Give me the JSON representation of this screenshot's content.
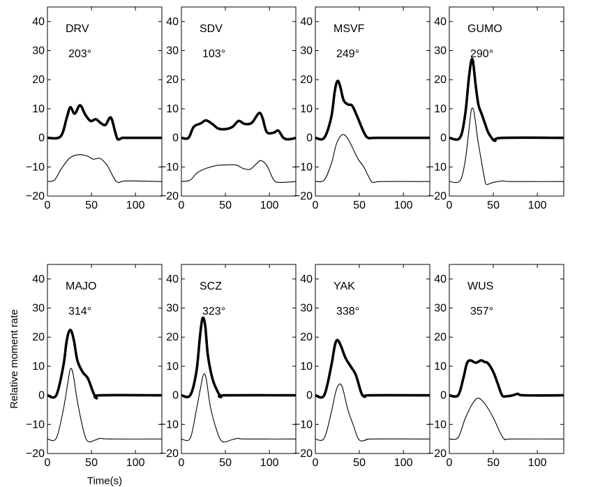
{
  "chart_data": {
    "type": "line",
    "xlabel": "Time(s)",
    "ylabel": "Relative moment rate",
    "xlim": [
      0,
      130
    ],
    "ylim": [
      -20,
      45
    ],
    "xticks": [
      0,
      50,
      100
    ],
    "yticks": [
      -20,
      -10,
      0,
      10,
      20,
      30,
      40
    ],
    "line_color": "#000000",
    "panels": [
      {
        "station": "DRV",
        "azimuth": "203°",
        "thick": [
          [
            0,
            0
          ],
          [
            15,
            0.5
          ],
          [
            22,
            7
          ],
          [
            26,
            10.5
          ],
          [
            31,
            8.3
          ],
          [
            37,
            11.2
          ],
          [
            43,
            8
          ],
          [
            49,
            5.8
          ],
          [
            55,
            6.4
          ],
          [
            61,
            5
          ],
          [
            66,
            4.5
          ],
          [
            72,
            7
          ],
          [
            77,
            2
          ],
          [
            80,
            -0.5
          ],
          [
            85,
            0
          ],
          [
            92,
            0
          ],
          [
            130,
            0
          ]
        ],
        "thin": [
          [
            0,
            -15
          ],
          [
            8,
            -14.5
          ],
          [
            15,
            -11
          ],
          [
            25,
            -7
          ],
          [
            35,
            -5.8
          ],
          [
            45,
            -6.2
          ],
          [
            52,
            -7.3
          ],
          [
            60,
            -7.1
          ],
          [
            68,
            -9.5
          ],
          [
            75,
            -13.5
          ],
          [
            80,
            -15.3
          ],
          [
            90,
            -14.8
          ],
          [
            130,
            -15
          ]
        ]
      },
      {
        "station": "SDV",
        "azimuth": "103°",
        "thick": [
          [
            0,
            0
          ],
          [
            8,
            0
          ],
          [
            14,
            3.8
          ],
          [
            22,
            5
          ],
          [
            28,
            6
          ],
          [
            35,
            4.8
          ],
          [
            42,
            3.2
          ],
          [
            50,
            3
          ],
          [
            58,
            3.8
          ],
          [
            65,
            5.8
          ],
          [
            72,
            4.8
          ],
          [
            80,
            5.2
          ],
          [
            88,
            8.5
          ],
          [
            92,
            7
          ],
          [
            97,
            2
          ],
          [
            105,
            1.8
          ],
          [
            110,
            2.5
          ],
          [
            116,
            0
          ],
          [
            122,
            -0.5
          ],
          [
            130,
            0
          ]
        ],
        "thin": [
          [
            0,
            -15
          ],
          [
            10,
            -14.5
          ],
          [
            18,
            -12
          ],
          [
            28,
            -10.5
          ],
          [
            40,
            -9.5
          ],
          [
            50,
            -9.3
          ],
          [
            62,
            -9.3
          ],
          [
            70,
            -10.5
          ],
          [
            78,
            -10.8
          ],
          [
            85,
            -9
          ],
          [
            90,
            -7.8
          ],
          [
            97,
            -9.5
          ],
          [
            105,
            -14.5
          ],
          [
            112,
            -15.3
          ],
          [
            130,
            -15
          ]
        ]
      },
      {
        "station": "MSVF",
        "azimuth": "249°",
        "thick": [
          [
            0,
            0
          ],
          [
            10,
            0
          ],
          [
            18,
            7
          ],
          [
            22,
            16
          ],
          [
            25,
            19.5
          ],
          [
            28,
            18
          ],
          [
            32,
            13
          ],
          [
            37,
            11.5
          ],
          [
            42,
            11
          ],
          [
            48,
            7
          ],
          [
            55,
            2
          ],
          [
            60,
            0
          ],
          [
            70,
            0
          ],
          [
            130,
            0
          ]
        ],
        "thin": [
          [
            0,
            -15
          ],
          [
            10,
            -14.5
          ],
          [
            18,
            -9
          ],
          [
            24,
            -2
          ],
          [
            30,
            1
          ],
          [
            35,
            0.5
          ],
          [
            40,
            -2
          ],
          [
            48,
            -7
          ],
          [
            55,
            -10
          ],
          [
            60,
            -13
          ],
          [
            65,
            -15.3
          ],
          [
            75,
            -15
          ],
          [
            130,
            -15
          ]
        ]
      },
      {
        "station": "GUMO",
        "azimuth": "290°",
        "thick": [
          [
            0,
            0
          ],
          [
            12,
            0
          ],
          [
            18,
            8
          ],
          [
            22,
            20
          ],
          [
            25,
            26.5
          ],
          [
            27,
            26
          ],
          [
            30,
            18
          ],
          [
            33,
            11.5
          ],
          [
            37,
            8
          ],
          [
            41,
            4.5
          ],
          [
            44,
            2
          ],
          [
            48,
            0
          ],
          [
            52,
            -1
          ],
          [
            60,
            0
          ],
          [
            130,
            0
          ]
        ],
        "thin": [
          [
            0,
            -15
          ],
          [
            12,
            -14.8
          ],
          [
            18,
            -8
          ],
          [
            22,
            2
          ],
          [
            25,
            9.5
          ],
          [
            28,
            9
          ],
          [
            32,
            0
          ],
          [
            37,
            -9
          ],
          [
            40,
            -14
          ],
          [
            42,
            -16
          ],
          [
            48,
            -15.5
          ],
          [
            55,
            -15
          ],
          [
            62,
            -14.8
          ],
          [
            70,
            -15
          ],
          [
            130,
            -15
          ]
        ]
      },
      {
        "station": "MAJO",
        "azimuth": "314°",
        "thick": [
          [
            0,
            0
          ],
          [
            10,
            0
          ],
          [
            18,
            10
          ],
          [
            22,
            19
          ],
          [
            26,
            22.5
          ],
          [
            30,
            19
          ],
          [
            34,
            12
          ],
          [
            40,
            8
          ],
          [
            46,
            5.8
          ],
          [
            52,
            1
          ],
          [
            56,
            -1
          ],
          [
            60,
            0
          ],
          [
            130,
            0
          ]
        ],
        "thin": [
          [
            0,
            -15
          ],
          [
            10,
            -14.8
          ],
          [
            18,
            -5
          ],
          [
            23,
            4
          ],
          [
            26,
            9
          ],
          [
            29,
            7.5
          ],
          [
            34,
            -2
          ],
          [
            40,
            -11
          ],
          [
            44,
            -15
          ],
          [
            48,
            -16
          ],
          [
            55,
            -15.3
          ],
          [
            60,
            -14.8
          ],
          [
            70,
            -15
          ],
          [
            130,
            -15
          ]
        ]
      },
      {
        "station": "SCZ",
        "azimuth": "323°",
        "thick": [
          [
            0,
            0
          ],
          [
            10,
            0
          ],
          [
            17,
            8
          ],
          [
            21,
            20
          ],
          [
            24,
            26.5
          ],
          [
            27,
            24
          ],
          [
            30,
            14
          ],
          [
            35,
            6
          ],
          [
            40,
            2
          ],
          [
            45,
            -0.5
          ],
          [
            50,
            0
          ],
          [
            130,
            0
          ]
        ],
        "thin": [
          [
            0,
            -15
          ],
          [
            10,
            -14.8
          ],
          [
            17,
            -5
          ],
          [
            22,
            3
          ],
          [
            25,
            7
          ],
          [
            28,
            6
          ],
          [
            33,
            -4
          ],
          [
            40,
            -12
          ],
          [
            45,
            -15.5
          ],
          [
            50,
            -16
          ],
          [
            58,
            -15.2
          ],
          [
            65,
            -14.8
          ],
          [
            72,
            -15
          ],
          [
            130,
            -15
          ]
        ]
      },
      {
        "station": "YAK",
        "azimuth": "338°",
        "thick": [
          [
            0,
            0
          ],
          [
            10,
            0
          ],
          [
            18,
            10
          ],
          [
            22,
            17
          ],
          [
            25,
            19
          ],
          [
            29,
            17
          ],
          [
            34,
            13
          ],
          [
            40,
            10
          ],
          [
            46,
            7
          ],
          [
            52,
            1
          ],
          [
            56,
            -0.5
          ],
          [
            62,
            0
          ],
          [
            130,
            0
          ]
        ],
        "thin": [
          [
            0,
            -15
          ],
          [
            10,
            -14.8
          ],
          [
            18,
            -6
          ],
          [
            23,
            1
          ],
          [
            27,
            3.8
          ],
          [
            31,
            2.5
          ],
          [
            37,
            -5
          ],
          [
            44,
            -11
          ],
          [
            48,
            -14.5
          ],
          [
            52,
            -15.7
          ],
          [
            58,
            -15.3
          ],
          [
            65,
            -15
          ],
          [
            130,
            -15
          ]
        ]
      },
      {
        "station": "WUS",
        "azimuth": "357°",
        "thick": [
          [
            0,
            0
          ],
          [
            10,
            0
          ],
          [
            16,
            6
          ],
          [
            20,
            11
          ],
          [
            24,
            12
          ],
          [
            30,
            11.2
          ],
          [
            36,
            12
          ],
          [
            40,
            11.5
          ],
          [
            44,
            11
          ],
          [
            50,
            8
          ],
          [
            55,
            4
          ],
          [
            60,
            0
          ],
          [
            65,
            -0.3
          ],
          [
            72,
            0
          ],
          [
            78,
            0.5
          ],
          [
            85,
            0
          ],
          [
            130,
            0
          ]
        ],
        "thin": [
          [
            0,
            -15
          ],
          [
            10,
            -14.5
          ],
          [
            18,
            -8
          ],
          [
            26,
            -3
          ],
          [
            32,
            -1
          ],
          [
            38,
            -2
          ],
          [
            45,
            -5
          ],
          [
            52,
            -9
          ],
          [
            58,
            -13
          ],
          [
            63,
            -15.2
          ],
          [
            70,
            -15
          ],
          [
            130,
            -15
          ]
        ]
      }
    ]
  }
}
